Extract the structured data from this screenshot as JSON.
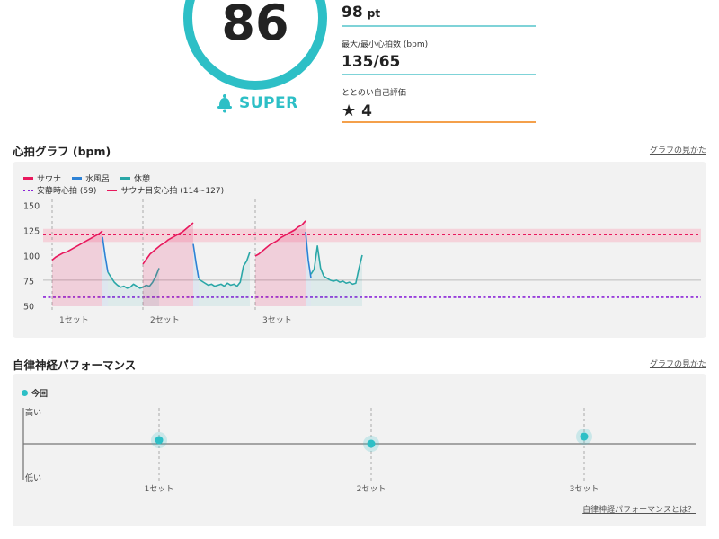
{
  "score": {
    "value": "86",
    "rank": "SUPER"
  },
  "stats": {
    "points": {
      "value": "98",
      "unit": "pt"
    },
    "heart_rate": {
      "label": "最大/最小心拍数 (bpm)",
      "value": "135/65"
    },
    "self_rating": {
      "label": "ととのい自己評価",
      "value": "4"
    }
  },
  "heart_section": {
    "title": "心拍グラフ (bpm)",
    "help_link": "グラフの見かた"
  },
  "autonomic_section": {
    "title": "自律神経パフォーマンス",
    "help_link": "グラフの見かた",
    "footer_link": "自律神経パフォーマンスとは？"
  },
  "colors": {
    "sauna": "#e8185d",
    "water": "#2d82d6",
    "rest": "#2aa7a7",
    "resting_hr": "#8b24d8",
    "target_band": "#f6c7d1",
    "accent": "#2dbfc6"
  },
  "chart_data": [
    {
      "type": "line",
      "xlabel": "",
      "ylabel": "",
      "ylim": [
        50,
        150
      ],
      "yticks": [
        150,
        125,
        100,
        75,
        50
      ],
      "grid": false,
      "legend": {
        "placement": "top-left",
        "items": [
          {
            "key": "sauna",
            "label": "サウナ"
          },
          {
            "key": "water",
            "label": "水風呂"
          },
          {
            "key": "rest",
            "label": "休憩"
          },
          {
            "key": "resting",
            "label": "安静時心拍 (59)"
          },
          {
            "key": "target",
            "label": "サウナ目安心拍 (114~127)"
          }
        ]
      },
      "set_labels": [
        "1セット",
        "2セット",
        "3セット"
      ],
      "resting_hr": 59,
      "target_band": [
        114,
        127
      ],
      "target_line": 121,
      "reference_line": 76,
      "sets": [
        {
          "sauna": [
            96,
            99,
            101,
            103,
            104,
            106,
            108,
            110,
            112,
            114,
            116,
            118,
            120,
            122,
            125
          ],
          "water": [
            119,
            100,
            84
          ],
          "rest": [
            84,
            79,
            74,
            71,
            69,
            70,
            68,
            69,
            72,
            70,
            68,
            69,
            71,
            70,
            74,
            80,
            88
          ]
        },
        {
          "sauna": [
            92,
            97,
            102,
            105,
            108,
            111,
            113,
            116,
            118,
            120,
            122,
            124,
            127,
            130,
            133
          ],
          "water": [
            112,
            94,
            78
          ],
          "rest": [
            77,
            75,
            73,
            71,
            72,
            70,
            71,
            72,
            70,
            73,
            71,
            72,
            70,
            74,
            90,
            95,
            104
          ]
        },
        {
          "sauna": [
            100,
            102,
            105,
            108,
            111,
            113,
            115,
            118,
            120,
            122,
            124,
            126,
            129,
            131,
            135
          ],
          "water": [
            124,
            96,
            78
          ],
          "rest": [
            82,
            87,
            110,
            88,
            80,
            78,
            76,
            75,
            76,
            74,
            75,
            73,
            74,
            72,
            73,
            88,
            101
          ]
        }
      ]
    },
    {
      "type": "scatter",
      "ylabels": [
        "高い",
        "低い"
      ],
      "categories": [
        "1セット",
        "2セット",
        "3セット"
      ],
      "legend": [
        "今回"
      ],
      "values": [
        0.55,
        0.5,
        0.6
      ]
    }
  ]
}
